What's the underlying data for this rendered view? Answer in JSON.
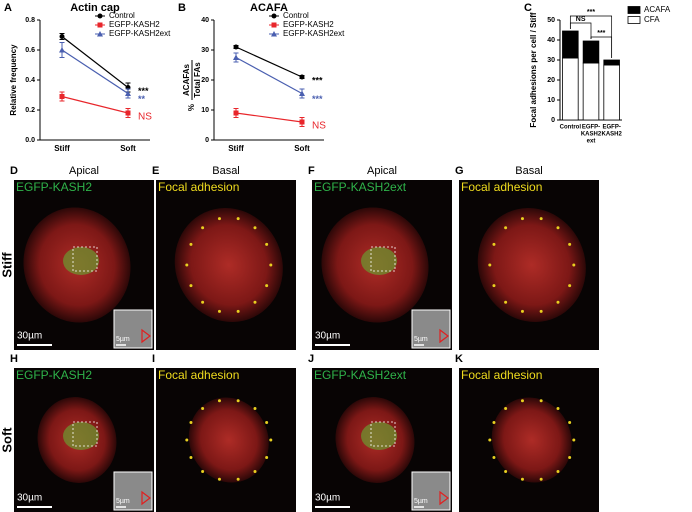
{
  "chart_data": [
    {
      "type": "line",
      "panel": "A",
      "title": "Actin cap",
      "ylabel": "Relative frequency",
      "categories": [
        "Stiff",
        "Soft"
      ],
      "ylim": [
        0,
        0.8
      ],
      "yticks": [
        {
          "value": 0,
          "label": "0.0"
        },
        {
          "value": 0.2,
          "label": "0.2"
        },
        {
          "value": 0.4,
          "label": "0.4"
        },
        {
          "value": 0.6,
          "label": "0.6"
        },
        {
          "value": 0.8,
          "label": "0.8"
        }
      ],
      "legend": "upper right",
      "series": [
        {
          "name": "Control",
          "color": "#000000",
          "marker": "circle",
          "values": [
            0.69,
            0.35
          ],
          "errors": [
            0.02,
            0.03
          ]
        },
        {
          "name": "EGFP-KASH2",
          "color": "#e8262b",
          "marker": "square",
          "values": [
            0.29,
            0.18
          ],
          "errors": [
            0.03,
            0.03
          ]
        },
        {
          "name": "EGFP-KASH2ext",
          "color": "#4a5fb0",
          "marker": "triangle",
          "values": [
            0.6,
            0.31
          ],
          "errors": [
            0.05,
            0.03
          ]
        }
      ],
      "annotations": [
        {
          "text": "***",
          "color": "#000000"
        },
        {
          "text": "**",
          "color": "#4a5fb0"
        },
        {
          "text": "NS",
          "color": "#e8262b"
        }
      ]
    },
    {
      "type": "line",
      "panel": "B",
      "title": "ACAFA",
      "ylabel": {
        "prefix": "%",
        "numerator": "ACAFAs",
        "denominator": "Total FAs"
      },
      "categories": [
        "Stiff",
        "Soft"
      ],
      "ylim": [
        0,
        40
      ],
      "yticks": [
        0,
        10,
        20,
        30,
        40
      ],
      "legend": "upper right",
      "series": [
        {
          "name": "Control",
          "color": "#000000",
          "marker": "circle",
          "values": [
            31,
            21
          ],
          "errors": [
            0.5,
            0.5
          ]
        },
        {
          "name": "EGFP-KASH2",
          "color": "#e8262b",
          "marker": "square",
          "values": [
            9,
            6
          ],
          "errors": [
            1.5,
            1.5
          ]
        },
        {
          "name": "EGFP-KASH2ext",
          "color": "#4a5fb0",
          "marker": "triangle",
          "values": [
            27.5,
            15.5
          ],
          "errors": [
            1.5,
            1.5
          ]
        }
      ],
      "annotations": [
        {
          "text": "***",
          "color": "#000000"
        },
        {
          "text": "***",
          "color": "#4a5fb0"
        },
        {
          "text": "NS",
          "color": "#e8262b"
        }
      ]
    },
    {
      "type": "stacked_bar",
      "panel": "C",
      "ylabel": "Focal adhesions per cell / Stiff",
      "categories": [
        [
          "Control"
        ],
        [
          "EGFP-",
          "KASH2",
          "ext"
        ],
        [
          "EGFP-",
          "KASH2"
        ]
      ],
      "ylim": [
        0,
        50
      ],
      "yticks": [
        0,
        10,
        20,
        30,
        40,
        50
      ],
      "legend": "upper right",
      "series": [
        {
          "name": "CFA",
          "color": "#ffffff",
          "values": [
            31,
            28.5,
            27.5
          ]
        },
        {
          "name": "ACAFA",
          "color": "#000000",
          "values": [
            13.5,
            11,
            2.5
          ]
        }
      ],
      "annotations": [
        {
          "text": "NS"
        },
        {
          "text": "***"
        },
        {
          "text": "***"
        }
      ]
    }
  ],
  "rows": [
    "Stiff",
    "Soft"
  ],
  "panels": [
    {
      "letter": "D",
      "header": "Apical",
      "channel": "EGFP-KASH2",
      "channel_color": "#2fb34a",
      "scale": "30µm",
      "inset_scale": "5µm"
    },
    {
      "letter": "E",
      "header": "Basal",
      "channel": "Focal adhesion",
      "channel_color": "#f0dc1e"
    },
    {
      "letter": "F",
      "header": "Apical",
      "channel": "EGFP-KASH2ext",
      "channel_color": "#2fb34a",
      "scale": "30µm",
      "inset_scale": "5µm"
    },
    {
      "letter": "G",
      "header": "Basal",
      "channel": "Focal adhesion",
      "channel_color": "#f0dc1e"
    },
    {
      "letter": "H",
      "channel": "EGFP-KASH2",
      "channel_color": "#2fb34a",
      "scale": "30µm",
      "inset_scale": "5µm"
    },
    {
      "letter": "I",
      "channel": "Focal adhesion",
      "channel_color": "#f0dc1e"
    },
    {
      "letter": "J",
      "channel": "EGFP-KASH2ext",
      "channel_color": "#2fb34a",
      "scale": "30µm",
      "inset_scale": "5µm"
    },
    {
      "letter": "K",
      "channel": "Focal adhesion",
      "channel_color": "#f0dc1e"
    }
  ]
}
